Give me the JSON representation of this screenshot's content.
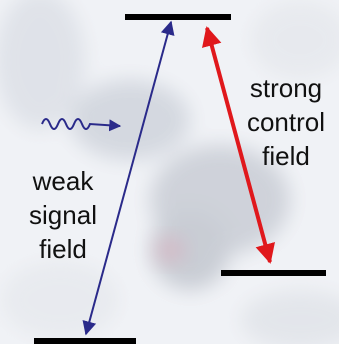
{
  "control_label": {
    "lines": [
      "strong",
      "control",
      "field"
    ]
  },
  "signal_label": {
    "lines": [
      "weak",
      "signal",
      "field"
    ]
  }
}
